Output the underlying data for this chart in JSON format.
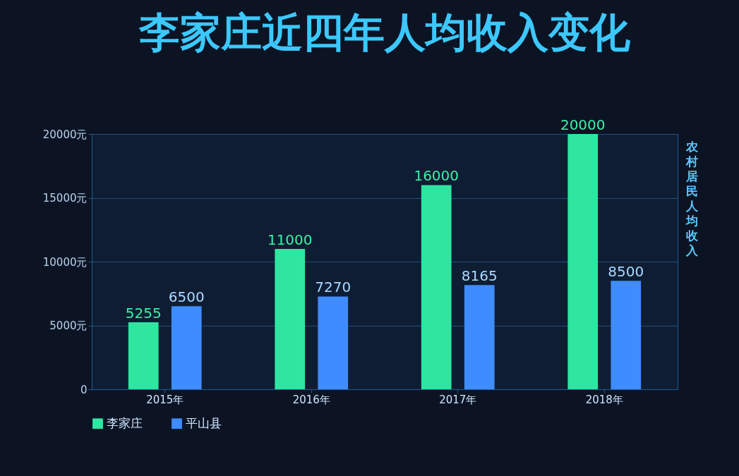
{
  "chart_data": {
    "type": "bar",
    "title": "李家庄近四年人均收入变化",
    "ylabel": "农村居民人均收入",
    "categories": [
      "2015年",
      "2016年",
      "2017年",
      "2018年"
    ],
    "series": [
      {
        "name": "李家庄",
        "color": "#2ee6a0",
        "values": [
          5255,
          11000,
          16000,
          20000
        ]
      },
      {
        "name": "平山县",
        "color": "#3f8cff",
        "values": [
          6500,
          7270,
          8165,
          8500
        ]
      }
    ],
    "ylim": [
      0,
      20000
    ],
    "yticks": [
      0,
      {
        "value": 5000,
        "label": "5000元"
      },
      {
        "value": 10000,
        "label": "10000元"
      },
      {
        "value": 15000,
        "label": "15000元"
      },
      {
        "value": 20000,
        "label": "20000元"
      }
    ],
    "grid": "y",
    "legend": "bottom",
    "data_labels": true
  }
}
